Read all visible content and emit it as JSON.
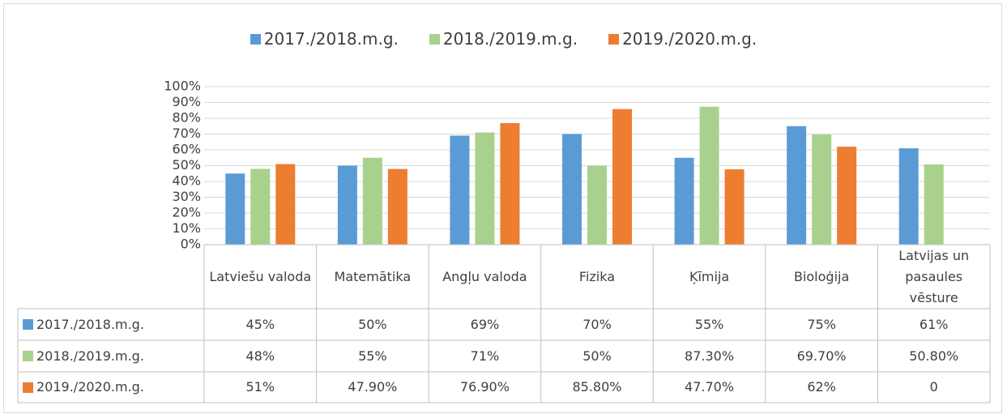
{
  "chart_data": {
    "type": "bar",
    "categories": [
      "Latviešu valoda",
      "Matemātika",
      "Angļu valoda",
      "Fizika",
      "Ķīmija",
      "Bioloģija",
      "Latvijas un pasaules vēsture"
    ],
    "series": [
      {
        "name": "2017./2018.m.g.",
        "color": "#5b9bd5",
        "values": [
          45,
          50,
          69,
          70,
          55,
          75,
          61
        ],
        "value_labels": [
          "45%",
          "50%",
          "69%",
          "70%",
          "55%",
          "75%",
          "61%"
        ]
      },
      {
        "name": "2018./2019.m.g.",
        "color": "#a9d18e",
        "values": [
          48,
          55,
          71,
          50,
          87.3,
          69.7,
          50.8
        ],
        "value_labels": [
          "48%",
          "55%",
          "71%",
          "50%",
          "87.30%",
          "69.70%",
          "50.80%"
        ]
      },
      {
        "name": "2019./2020.m.g.",
        "color": "#ed7d31",
        "values": [
          51,
          47.9,
          76.9,
          85.8,
          47.7,
          62,
          0
        ],
        "value_labels": [
          "51%",
          "47.90%",
          "76.90%",
          "85.80%",
          "47.70%",
          "62%",
          "0"
        ]
      }
    ],
    "ylim": [
      0,
      100
    ],
    "yticks": [
      {
        "value": 0,
        "label": "0%"
      },
      {
        "value": 10,
        "label": "10%"
      },
      {
        "value": 20,
        "label": "20%"
      },
      {
        "value": 30,
        "label": "30%"
      },
      {
        "value": 40,
        "label": "40%"
      },
      {
        "value": 50,
        "label": "50%"
      },
      {
        "value": 60,
        "label": "60%"
      },
      {
        "value": 70,
        "label": "70%"
      },
      {
        "value": 80,
        "label": "80%"
      },
      {
        "value": 90,
        "label": "90%"
      },
      {
        "value": 100,
        "label": "100%"
      }
    ],
    "grid": true,
    "legend": "top",
    "data_table": true
  }
}
